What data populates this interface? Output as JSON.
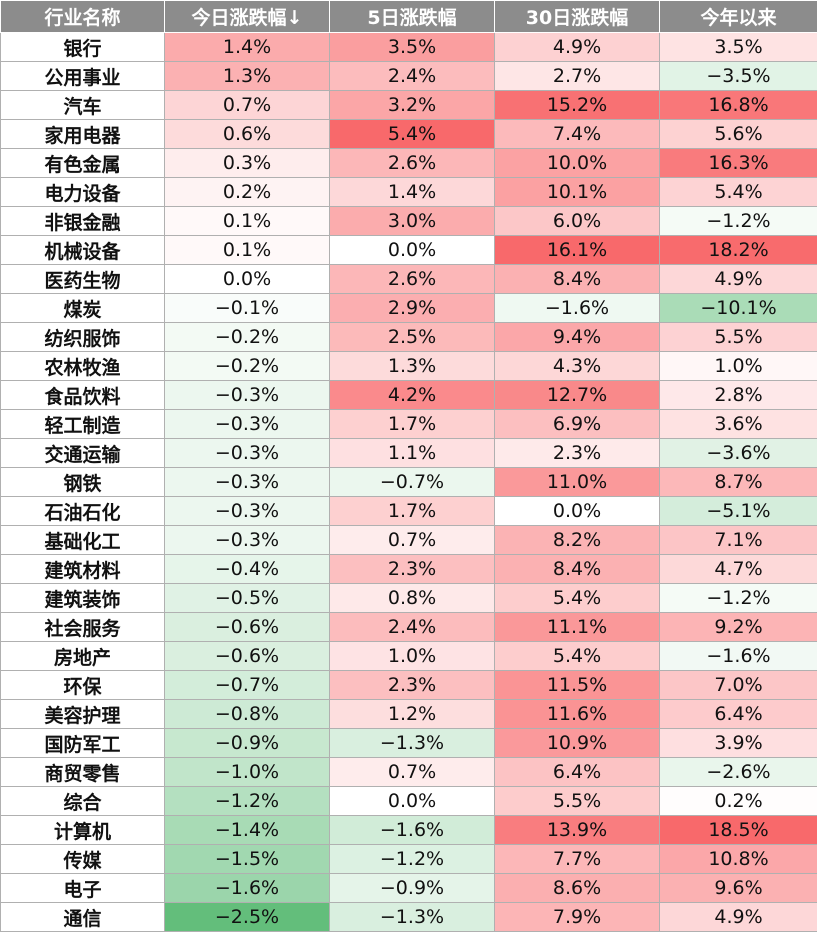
{
  "chart_data": {
    "type": "heatmap",
    "columns": [
      "行业名称",
      "今日涨跌幅↓",
      "5日涨跌幅",
      "30日涨跌幅",
      "今年以来"
    ],
    "value_format": "percent",
    "colors": {
      "negative_max": "#63be7b",
      "zero": "#ffffff",
      "positive_max": "#f8696b"
    },
    "rows": [
      {
        "name": "银行",
        "values": [
          1.4,
          3.5,
          4.9,
          3.5
        ]
      },
      {
        "name": "公用事业",
        "values": [
          1.3,
          2.4,
          2.7,
          -3.5
        ]
      },
      {
        "name": "汽车",
        "values": [
          0.7,
          3.2,
          15.2,
          16.8
        ]
      },
      {
        "name": "家用电器",
        "values": [
          0.6,
          5.4,
          7.4,
          5.6
        ]
      },
      {
        "name": "有色金属",
        "values": [
          0.3,
          2.6,
          10.0,
          16.3
        ]
      },
      {
        "name": "电力设备",
        "values": [
          0.2,
          1.4,
          10.1,
          5.4
        ]
      },
      {
        "name": "非银金融",
        "values": [
          0.1,
          3.0,
          6.0,
          -1.2
        ]
      },
      {
        "name": "机械设备",
        "values": [
          0.1,
          0.0,
          16.1,
          18.2
        ]
      },
      {
        "name": "医药生物",
        "values": [
          0.0,
          2.6,
          8.4,
          4.9
        ]
      },
      {
        "name": "煤炭",
        "values": [
          -0.1,
          2.9,
          -1.6,
          -10.1
        ]
      },
      {
        "name": "纺织服饰",
        "values": [
          -0.2,
          2.5,
          9.4,
          5.5
        ]
      },
      {
        "name": "农林牧渔",
        "values": [
          -0.2,
          1.3,
          4.3,
          1.0
        ]
      },
      {
        "name": "食品饮料",
        "values": [
          -0.3,
          4.2,
          12.7,
          2.8
        ]
      },
      {
        "name": "轻工制造",
        "values": [
          -0.3,
          1.7,
          6.9,
          3.6
        ]
      },
      {
        "name": "交通运输",
        "values": [
          -0.3,
          1.1,
          2.3,
          -3.6
        ]
      },
      {
        "name": "钢铁",
        "values": [
          -0.3,
          -0.7,
          11.0,
          8.7
        ]
      },
      {
        "name": "石油石化",
        "values": [
          -0.3,
          1.7,
          0.0,
          -5.1
        ]
      },
      {
        "name": "基础化工",
        "values": [
          -0.3,
          0.7,
          8.2,
          7.1
        ]
      },
      {
        "name": "建筑材料",
        "values": [
          -0.4,
          2.3,
          8.4,
          4.7
        ]
      },
      {
        "name": "建筑装饰",
        "values": [
          -0.5,
          0.8,
          5.4,
          -1.2
        ]
      },
      {
        "name": "社会服务",
        "values": [
          -0.6,
          2.4,
          11.1,
          9.2
        ]
      },
      {
        "name": "房地产",
        "values": [
          -0.6,
          1.0,
          5.4,
          -1.6
        ]
      },
      {
        "name": "环保",
        "values": [
          -0.7,
          2.3,
          11.5,
          7.0
        ]
      },
      {
        "name": "美容护理",
        "values": [
          -0.8,
          1.2,
          11.6,
          6.4
        ]
      },
      {
        "name": "国防军工",
        "values": [
          -0.9,
          -1.3,
          10.9,
          3.9
        ]
      },
      {
        "name": "商贸零售",
        "values": [
          -1.0,
          0.7,
          6.4,
          -2.6
        ]
      },
      {
        "name": "综合",
        "values": [
          -1.2,
          0.0,
          5.5,
          0.2
        ]
      },
      {
        "name": "计算机",
        "values": [
          -1.4,
          -1.6,
          13.9,
          18.5
        ]
      },
      {
        "name": "传媒",
        "values": [
          -1.5,
          -1.2,
          7.7,
          10.8
        ]
      },
      {
        "name": "电子",
        "values": [
          -1.6,
          -0.9,
          8.6,
          9.6
        ]
      },
      {
        "name": "通信",
        "values": [
          -2.5,
          -1.3,
          7.9,
          4.9
        ]
      }
    ]
  }
}
